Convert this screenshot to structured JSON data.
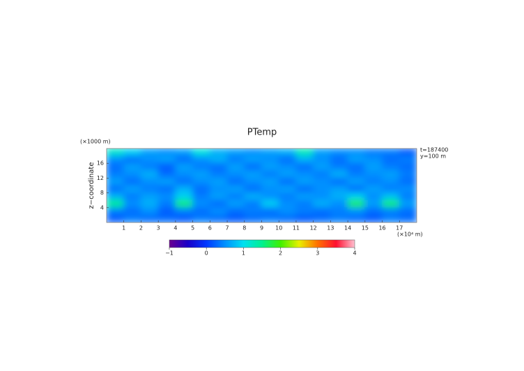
{
  "chart_data": {
    "type": "heatmap",
    "title": "PTemp",
    "y_unit": "(×1000 m)",
    "ylabel": "z−coordinate",
    "x_unit": "(×10⁴ m)",
    "annotations": [
      "t=187400",
      "y=100 m"
    ],
    "xbins": [
      0,
      1,
      2,
      3,
      4,
      5,
      6,
      7,
      8,
      9,
      10,
      11,
      12,
      13,
      14,
      15,
      16,
      17,
      18
    ],
    "ybins": [
      20,
      18,
      16,
      14,
      12,
      10,
      8,
      6,
      4,
      2,
      0
    ],
    "values": [
      [
        1.2,
        0.9,
        0.6,
        0.5,
        0.6,
        1.1,
        0.7,
        0.6,
        0.5,
        0.6,
        0.7,
        1.3,
        0.6,
        0.5,
        0.5,
        0.4,
        0.4,
        0.2
      ],
      [
        0.5,
        0.3,
        0.5,
        0.6,
        0.3,
        0.5,
        0.7,
        0.4,
        0.6,
        0.5,
        0.3,
        0.7,
        0.5,
        0.3,
        0.6,
        0.5,
        0.3,
        0.4
      ],
      [
        0.3,
        0.6,
        0.4,
        0.2,
        0.6,
        0.4,
        0.3,
        0.6,
        0.3,
        0.6,
        0.5,
        0.3,
        0.6,
        0.4,
        0.3,
        0.6,
        0.4,
        0.3
      ],
      [
        0.4,
        0.5,
        0.7,
        0.3,
        0.5,
        0.6,
        0.4,
        0.5,
        0.6,
        0.4,
        0.6,
        0.5,
        0.4,
        0.7,
        0.4,
        0.5,
        0.6,
        0.4
      ],
      [
        0.6,
        0.3,
        0.5,
        0.6,
        0.3,
        0.5,
        0.6,
        0.3,
        0.5,
        0.6,
        0.3,
        0.6,
        0.5,
        0.3,
        0.6,
        0.4,
        0.5,
        0.3
      ],
      [
        0.3,
        0.6,
        0.4,
        0.3,
        0.7,
        0.3,
        0.5,
        0.6,
        0.3,
        0.5,
        0.6,
        0.3,
        0.5,
        0.6,
        0.3,
        0.6,
        0.4,
        0.5
      ],
      [
        0.7,
        0.4,
        0.6,
        0.5,
        0.9,
        0.4,
        0.6,
        0.4,
        0.7,
        0.5,
        0.4,
        0.6,
        0.5,
        0.7,
        0.9,
        0.5,
        0.8,
        0.4
      ],
      [
        1.5,
        0.5,
        0.7,
        0.4,
        1.6,
        0.5,
        0.3,
        0.6,
        0.4,
        0.9,
        0.5,
        0.4,
        0.7,
        0.5,
        1.7,
        0.6,
        1.6,
        0.6
      ],
      [
        0.4,
        0.3,
        0.5,
        0.2,
        0.4,
        0.3,
        0.5,
        0.3,
        0.4,
        0.3,
        0.5,
        0.4,
        0.3,
        0.4,
        0.5,
        0.3,
        0.4,
        0.3
      ],
      [
        0.2,
        0.4,
        0.3,
        0.3,
        0.2,
        0.4,
        0.3,
        0.2,
        0.3,
        0.4,
        0.3,
        0.2,
        0.3,
        0.4,
        0.3,
        0.2,
        0.4,
        0.3
      ]
    ],
    "xlim": [
      0,
      18
    ],
    "ylim": [
      0,
      20
    ],
    "xticks": [
      1,
      2,
      3,
      4,
      5,
      6,
      7,
      8,
      9,
      10,
      11,
      12,
      13,
      14,
      15,
      16,
      17
    ],
    "yticks": [
      4,
      8,
      12,
      16
    ],
    "clim": [
      -1,
      4
    ],
    "cticks": [
      {
        "value": -1,
        "label": "−1"
      },
      0,
      1,
      2,
      3,
      4
    ],
    "colorscale": [
      [
        -1,
        "#6a0090"
      ],
      [
        -0.5,
        "#1a00c8"
      ],
      [
        0,
        "#0038ff"
      ],
      [
        0.5,
        "#0090ff"
      ],
      [
        1,
        "#00e0f0"
      ],
      [
        1.5,
        "#00f090"
      ],
      [
        2,
        "#40f000"
      ],
      [
        2.5,
        "#e8f000"
      ],
      [
        3,
        "#ff7000"
      ],
      [
        3.5,
        "#ff1030"
      ],
      [
        4,
        "#ffc0d0"
      ]
    ]
  }
}
